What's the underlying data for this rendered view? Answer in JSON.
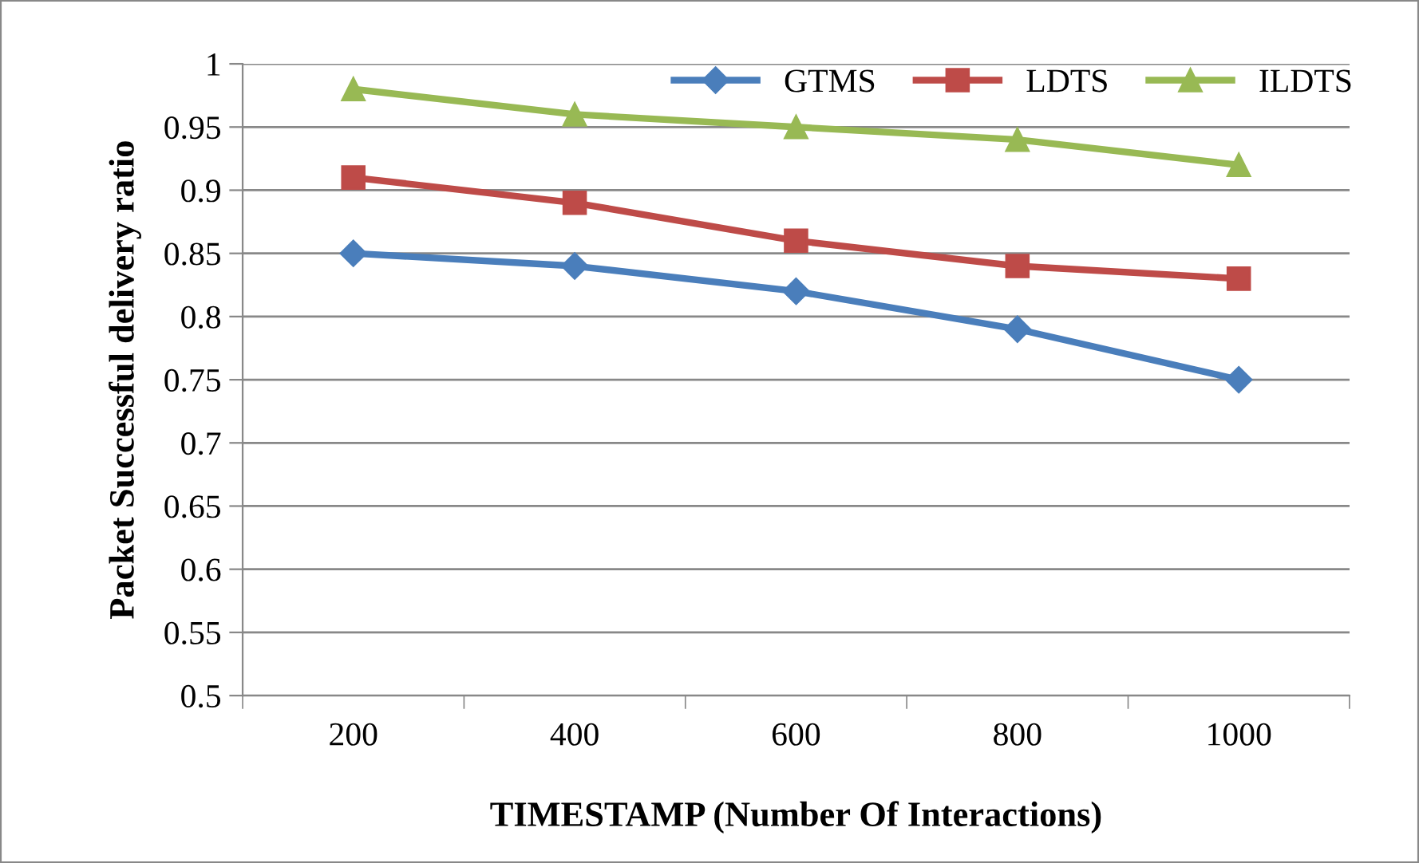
{
  "chart_data": {
    "type": "line",
    "xlabel": "TIMESTAMP (Number Of Interactions)",
    "ylabel": "Packet Successful delivery ratio",
    "categories": [
      "200",
      "400",
      "600",
      "800",
      "1000"
    ],
    "series": [
      {
        "name": "GTMS",
        "color": "#4a7ebb",
        "marker": "diamond",
        "values": [
          0.85,
          0.84,
          0.82,
          0.79,
          0.75
        ]
      },
      {
        "name": "LDTS",
        "color": "#be4b48",
        "marker": "square",
        "values": [
          0.91,
          0.89,
          0.86,
          0.84,
          0.83
        ]
      },
      {
        "name": "ILDTS",
        "color": "#98b954",
        "marker": "triangle",
        "values": [
          0.98,
          0.96,
          0.95,
          0.94,
          0.92
        ]
      }
    ],
    "ylim": [
      0.5,
      1
    ],
    "yticks": [
      0.5,
      0.55,
      0.6,
      0.65,
      0.7,
      0.75,
      0.8,
      0.85,
      0.9,
      0.95,
      1
    ],
    "grid": "y",
    "legend": "top right",
    "line_style": "solid"
  }
}
